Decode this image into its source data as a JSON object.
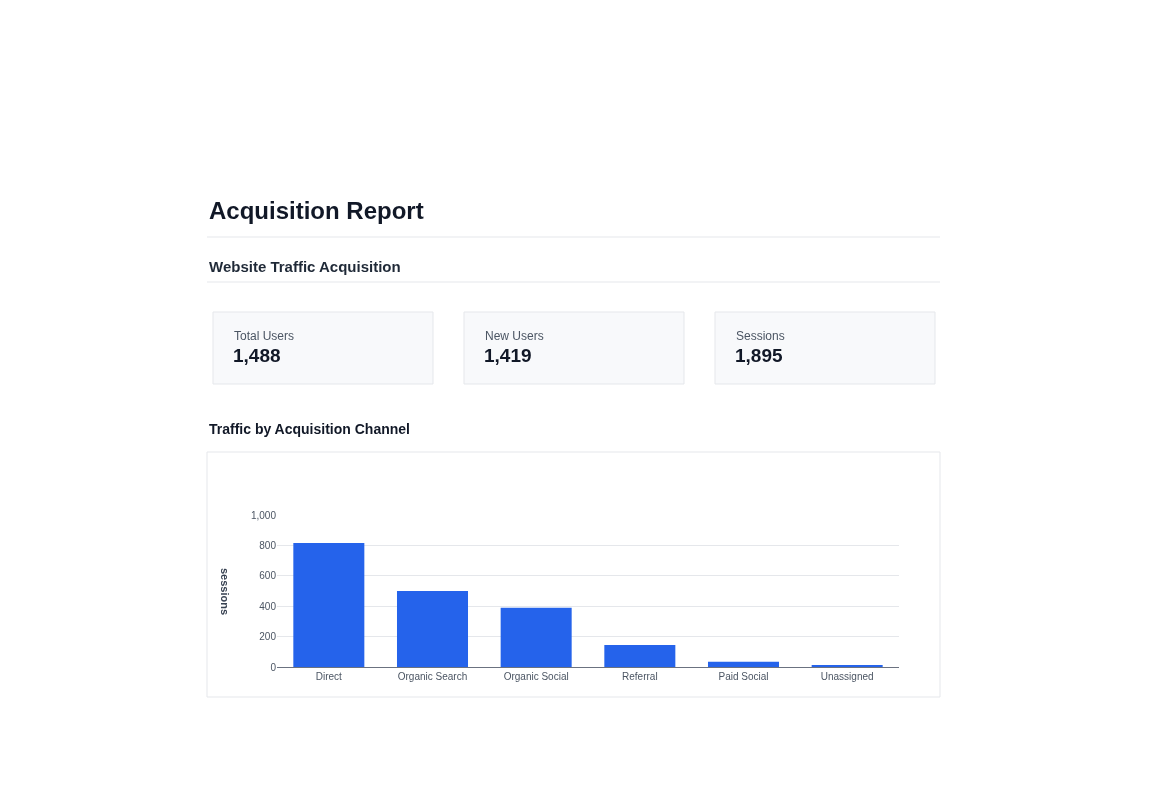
{
  "chart_data": [
    {
      "type": "other",
      "title": "Acquisition Report",
      "subtitle": "Website Traffic Acquisition",
      "annotations": [
        "Total Users",
        "1,488",
        "New Users",
        "1,419",
        "Sessions",
        "1,895"
      ]
    },
    {
      "type": "bar",
      "title": "Traffic by Acquisition Channel",
      "ylabel": "sessions",
      "categories": [
        "Direct",
        "Organic Search",
        "Organic Social",
        "Referral",
        "Paid Social",
        "Unassigned"
      ],
      "values": [
        815,
        500,
        390,
        145,
        35,
        8
      ],
      "color": "#2563eb",
      "ylim": [
        0,
        1000
      ],
      "yticks": [
        0,
        200,
        400,
        600,
        800,
        {
          "value": 1000,
          "label": "1,000"
        }
      ],
      "grid": "y"
    }
  ]
}
